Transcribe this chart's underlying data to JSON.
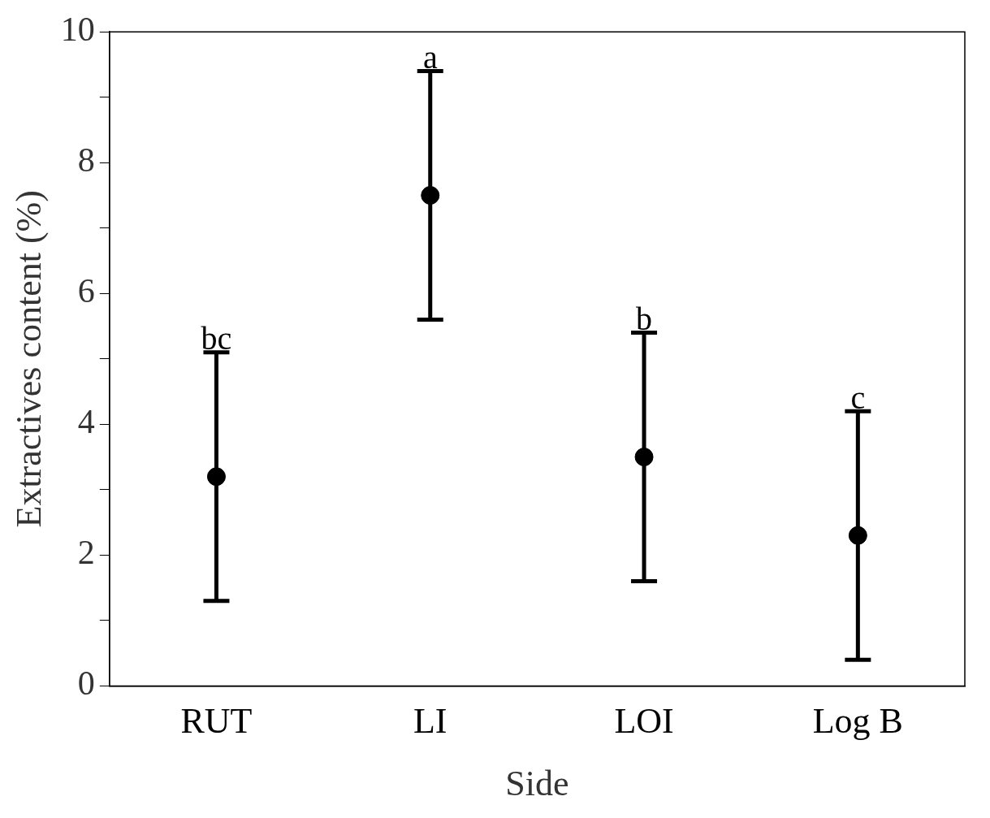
{
  "chart_data": {
    "type": "scatter",
    "xlabel": "Side",
    "ylabel": "Extractives content (%)",
    "categories": [
      "RUT",
      "LI",
      "LOI",
      "Log B"
    ],
    "values": [
      3.2,
      7.5,
      3.5,
      2.3
    ],
    "errors": [
      1.9,
      1.9,
      1.9,
      1.9
    ],
    "color": "#000000",
    "marker": "circle",
    "grid": false,
    "legend": false,
    "ylim": [
      0,
      10
    ],
    "yticks": [
      0,
      {
        "value": 1,
        "label": null
      },
      2,
      {
        "value": 3,
        "label": null
      },
      4,
      {
        "value": 5,
        "label": null
      },
      6,
      {
        "value": 7,
        "label": null
      },
      8,
      {
        "value": 9,
        "label": null
      },
      10
    ],
    "annotations": [
      {
        "text": "bc",
        "x": "RUT",
        "y": 5.1
      },
      {
        "text": "a",
        "x": "LI",
        "y": 9.4
      },
      {
        "text": "b",
        "x": "LOI",
        "y": 5.4
      },
      {
        "text": "c",
        "x": "Log B",
        "y": 4.2
      }
    ]
  }
}
